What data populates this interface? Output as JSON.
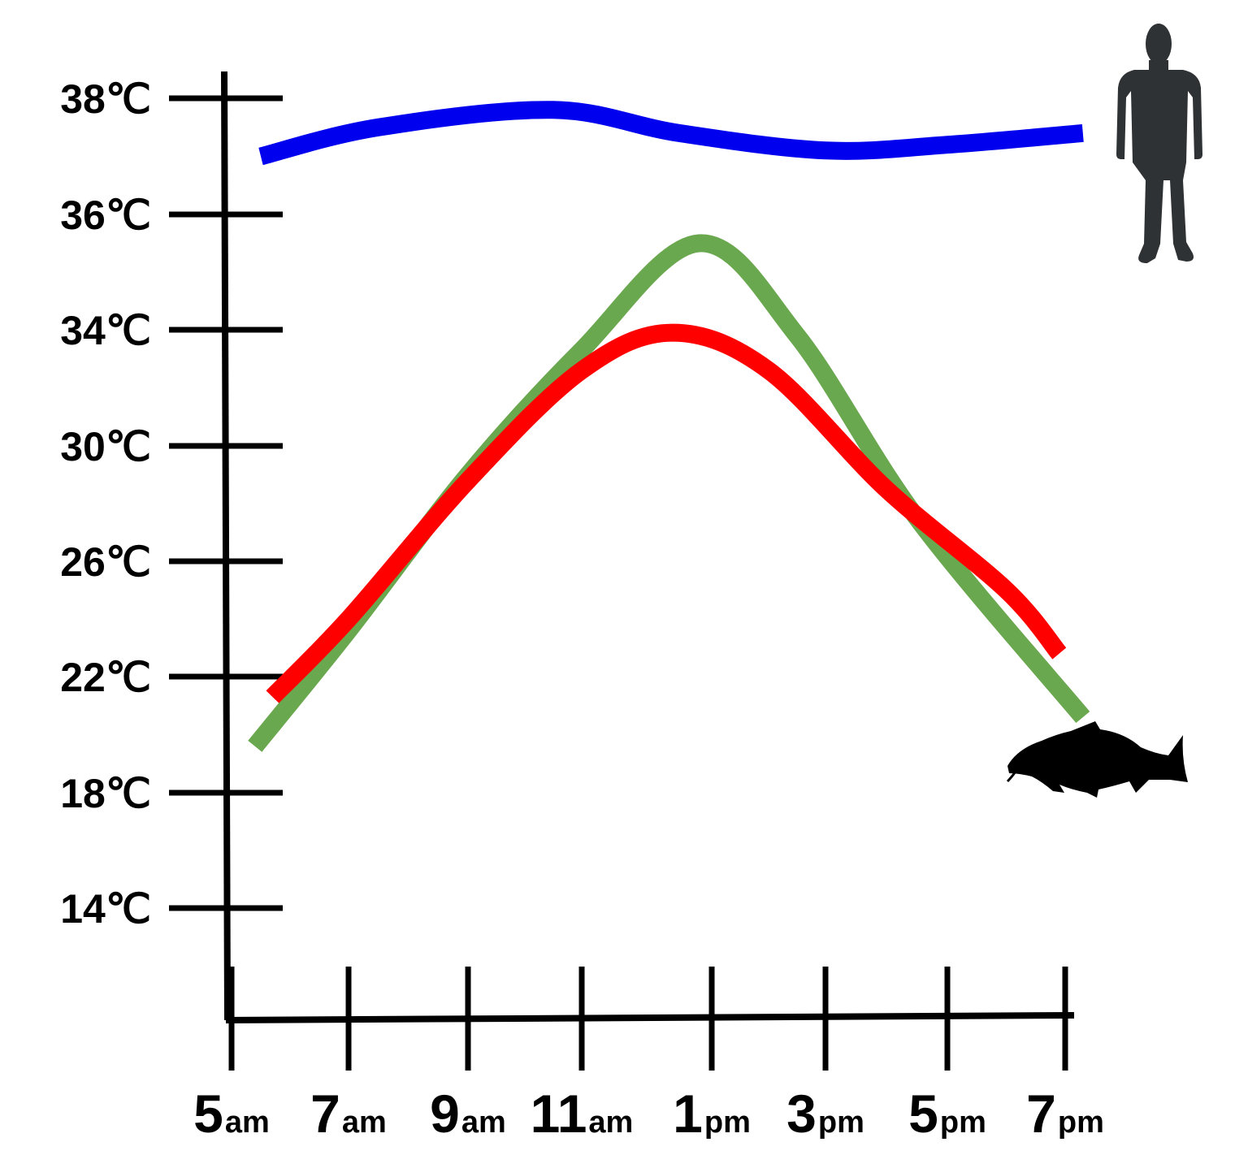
{
  "chart_data": {
    "type": "line",
    "y_tick_labels": [
      "38℃",
      "36℃",
      "34℃",
      "30℃",
      "26℃",
      "22℃",
      "18℃",
      "14℃"
    ],
    "x_tick_labels": [
      {
        "num": "5",
        "suffix": "am"
      },
      {
        "num": "7",
        "suffix": "am"
      },
      {
        "num": "9",
        "suffix": "am"
      },
      {
        "num": "11",
        "suffix": "am"
      },
      {
        "num": "1",
        "suffix": "pm"
      },
      {
        "num": "3",
        "suffix": "pm"
      },
      {
        "num": "5",
        "suffix": "pm"
      },
      {
        "num": "7",
        "suffix": "pm"
      }
    ],
    "series": [
      {
        "color": "#0000ee",
        "icon": "person-silhouette-icon",
        "points": [
          [
            5.5,
            37.0
          ],
          [
            7.5,
            37.5
          ],
          [
            10.5,
            37.8
          ],
          [
            12.5,
            37.4
          ],
          [
            15.0,
            37.1
          ],
          [
            17.0,
            37.2
          ],
          [
            19.3,
            37.4
          ]
        ]
      },
      {
        "color": "#6aa84f",
        "points": [
          [
            5.4,
            19.6
          ],
          [
            7.0,
            23.6
          ],
          [
            9.0,
            29.0
          ],
          [
            11.0,
            33.3
          ],
          [
            12.8,
            35.5
          ],
          [
            14.5,
            33.8
          ],
          [
            16.5,
            27.5
          ],
          [
            19.3,
            20.6
          ]
        ]
      },
      {
        "color": "#ff0000",
        "icon": "fish-silhouette-icon",
        "points": [
          [
            5.7,
            21.3
          ],
          [
            7.0,
            24.0
          ],
          [
            9.0,
            28.8
          ],
          [
            11.0,
            32.6
          ],
          [
            12.4,
            33.9
          ],
          [
            14.0,
            32.6
          ],
          [
            16.0,
            28.5
          ],
          [
            18.0,
            25.0
          ],
          [
            18.9,
            22.8
          ]
        ]
      }
    ]
  }
}
